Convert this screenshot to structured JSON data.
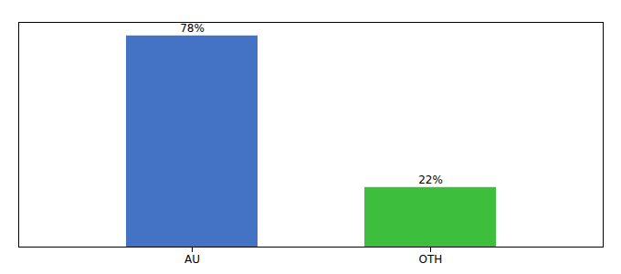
{
  "chart_data": {
    "type": "bar",
    "categories": [
      "AU",
      "OTH"
    ],
    "values": [
      78,
      22
    ],
    "value_labels": [
      "78%",
      "22%"
    ],
    "colors": [
      "#4472C4",
      "#3DBF3D"
    ],
    "ylim": [
      0,
      83
    ],
    "data_labels": true,
    "tick_labels": "x",
    "grid": false
  }
}
